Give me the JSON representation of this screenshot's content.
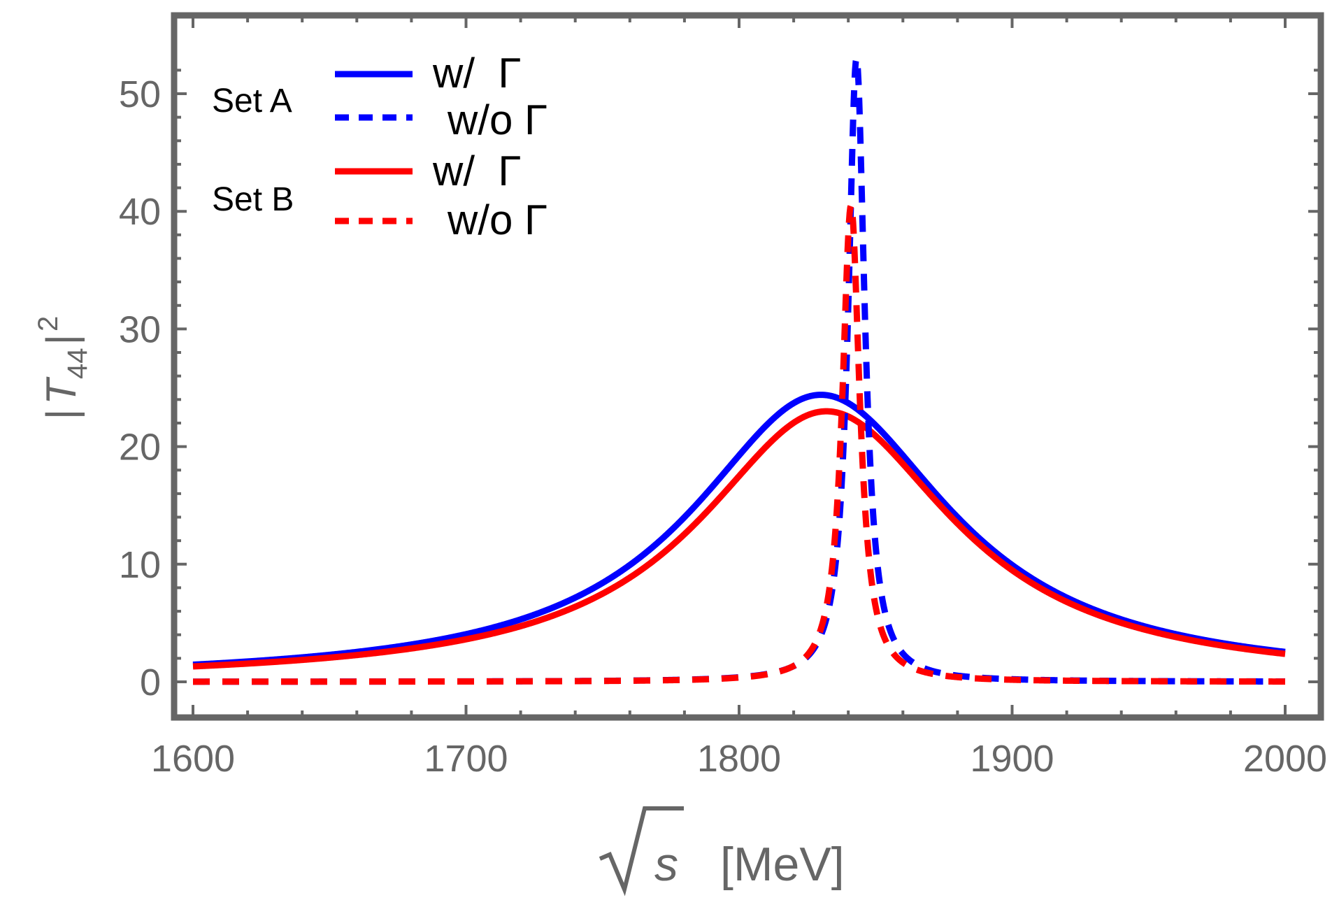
{
  "chart_data": {
    "type": "line",
    "title": "",
    "xlabel_root_symbol": "s",
    "xlabel_unit": "[MeV]",
    "ylabel_bar_open": "|",
    "ylabel_symbol": "T",
    "ylabel_subscript": "44",
    "ylabel_bar_close": "|",
    "ylabel_power": "2",
    "xlim": [
      1600,
      2000
    ],
    "ylim": [
      -3,
      55
    ],
    "xticks": [
      1600,
      1700,
      1800,
      1900,
      2000
    ],
    "xtick_labels": [
      "1600",
      "1700",
      "1800",
      "1900",
      "2000"
    ],
    "yticks": [
      0,
      10,
      20,
      30,
      40,
      50
    ],
    "ytick_labels": [
      "0",
      "10",
      "20",
      "30",
      "40",
      "50"
    ],
    "grid": false,
    "legend_position": "top-left",
    "legend": {
      "groups": [
        {
          "label": "Set A",
          "entries": [
            "w/  Γ",
            "w/o Γ"
          ]
        },
        {
          "label": "Set B",
          "entries": [
            "w/  Γ",
            "w/o Γ"
          ]
        }
      ]
    },
    "series": [
      {
        "name": "Set A w/ Γ",
        "color": "#0000FF",
        "style": "solid",
        "model": {
          "kind": "breit-wigner",
          "peak_x": 1830,
          "peak_y": 24.4,
          "half_width": 58
        }
      },
      {
        "name": "Set A w/o Γ",
        "color": "#0000FF",
        "style": "dashed",
        "model": {
          "kind": "breit-wigner",
          "peak_x": 1843,
          "peak_y": 53,
          "half_width": 3.7
        }
      },
      {
        "name": "Set B w/ Γ",
        "color": "#FF0000",
        "style": "solid",
        "model": {
          "kind": "breit-wigner",
          "peak_x": 1832,
          "peak_y": 23.0,
          "half_width": 57
        }
      },
      {
        "name": "Set B w/o Γ",
        "color": "#FF0000",
        "style": "dashed",
        "model": {
          "kind": "breit-wigner",
          "peak_x": 1841,
          "peak_y": 40.5,
          "half_width": 3.9
        }
      }
    ]
  }
}
